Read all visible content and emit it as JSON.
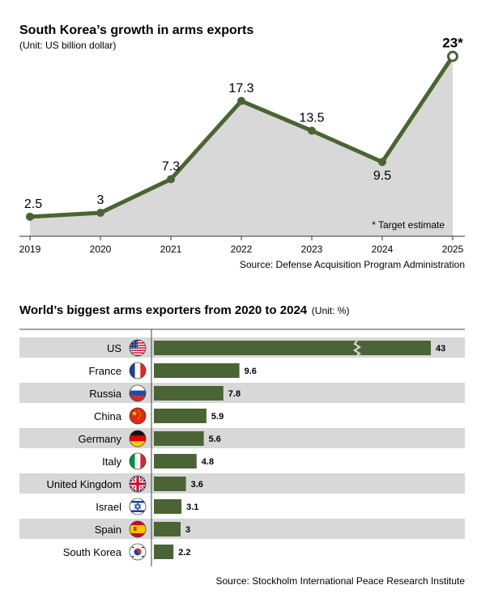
{
  "chart_data": [
    {
      "type": "area",
      "title": "South Korea’s growth in arms exports",
      "subtitle": "(Unit: US billion dollar)",
      "x": [
        "2019",
        "2020",
        "2021",
        "2022",
        "2023",
        "2024",
        "2025"
      ],
      "values": [
        2.5,
        3,
        7.3,
        17.3,
        13.5,
        9.5,
        23
      ],
      "data_labels": [
        "2.5",
        "3",
        "7.3",
        "17.3",
        "13.5",
        "9.5",
        "23*"
      ],
      "ylim": [
        0,
        24
      ],
      "note": "* Target estimate",
      "source": "Source: Defense Acquisition Program Administration",
      "colors": {
        "line": "#4a6435",
        "area": "#d8d8d8",
        "marker_last_fill": "#ffffff"
      }
    },
    {
      "type": "bar",
      "orientation": "horizontal",
      "title": "World’s biggest arms exporters from 2020 to 2024",
      "unit": "(Unit: %)",
      "categories": [
        "US",
        "France",
        "Russia",
        "China",
        "Germany",
        "Italy",
        "United Kingdom",
        "Israel",
        "Spain",
        "South Korea"
      ],
      "values": [
        43,
        9.6,
        7.8,
        5.9,
        5.6,
        4.8,
        3.6,
        3.1,
        3,
        2.2
      ],
      "value_labels": [
        "43",
        "9.6",
        "7.8",
        "5.9",
        "5.6",
        "4.8",
        "3.6",
        "3.1",
        "3",
        "2.2"
      ],
      "flags": [
        "us-flag-icon",
        "france-flag-icon",
        "russia-flag-icon",
        "china-flag-icon",
        "germany-flag-icon",
        "italy-flag-icon",
        "uk-flag-icon",
        "israel-flag-icon",
        "spain-flag-icon",
        "south-korea-flag-icon"
      ],
      "axis_break_on_first_bar": true,
      "source": "Source: Stockholm International Peace Research Institute",
      "colors": {
        "bar": "#4a6435",
        "stripe": "#d8d8d8"
      }
    }
  ]
}
